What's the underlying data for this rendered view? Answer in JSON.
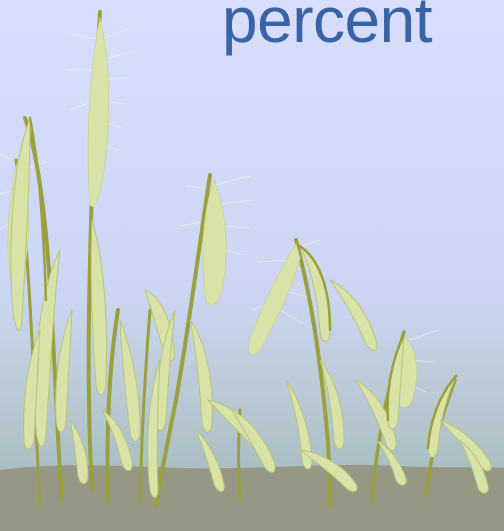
{
  "slide": {
    "headline": "percent"
  },
  "colors": {
    "sky_top": "#d6dcfb",
    "sky_bottom": "#9fb6b7",
    "ground": "#969785",
    "leaf": "#d9e3a8",
    "stem": "#9aa03b",
    "headline": "#3a63a6"
  }
}
